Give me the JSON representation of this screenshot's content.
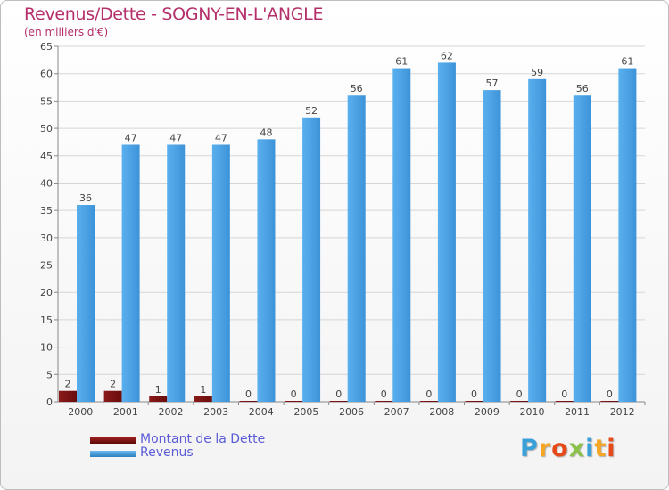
{
  "title": "Revenus/Dette - SOGNY-EN-L'ANGLE",
  "subtitle": "(en milliers d'€)",
  "logo": {
    "text": "Proxiti",
    "colors": [
      "#3aa0d8",
      "#f5a623",
      "#e64a19",
      "#8bc34a",
      "#3aa0d8",
      "#f5a623",
      "#e64a19"
    ]
  },
  "chart_data": {
    "type": "bar",
    "categories": [
      "2000",
      "2001",
      "2002",
      "2003",
      "2004",
      "2005",
      "2006",
      "2007",
      "2008",
      "2009",
      "2010",
      "2011",
      "2012"
    ],
    "series": [
      {
        "name": "Montant de la Dette",
        "color": "#7a1010",
        "values": [
          2,
          2,
          1,
          1,
          0,
          0,
          0,
          0,
          0,
          0,
          0,
          0,
          0
        ]
      },
      {
        "name": "Revenus",
        "color": "#4aa3e8",
        "values": [
          36,
          47,
          47,
          47,
          48,
          52,
          56,
          61,
          62,
          57,
          59,
          56,
          61
        ]
      }
    ],
    "ylim": [
      0,
      65
    ],
    "yticks": [
      0,
      5,
      10,
      15,
      20,
      25,
      30,
      35,
      40,
      45,
      50,
      55,
      60,
      65
    ],
    "grid": true,
    "legend": "bottom-left"
  }
}
